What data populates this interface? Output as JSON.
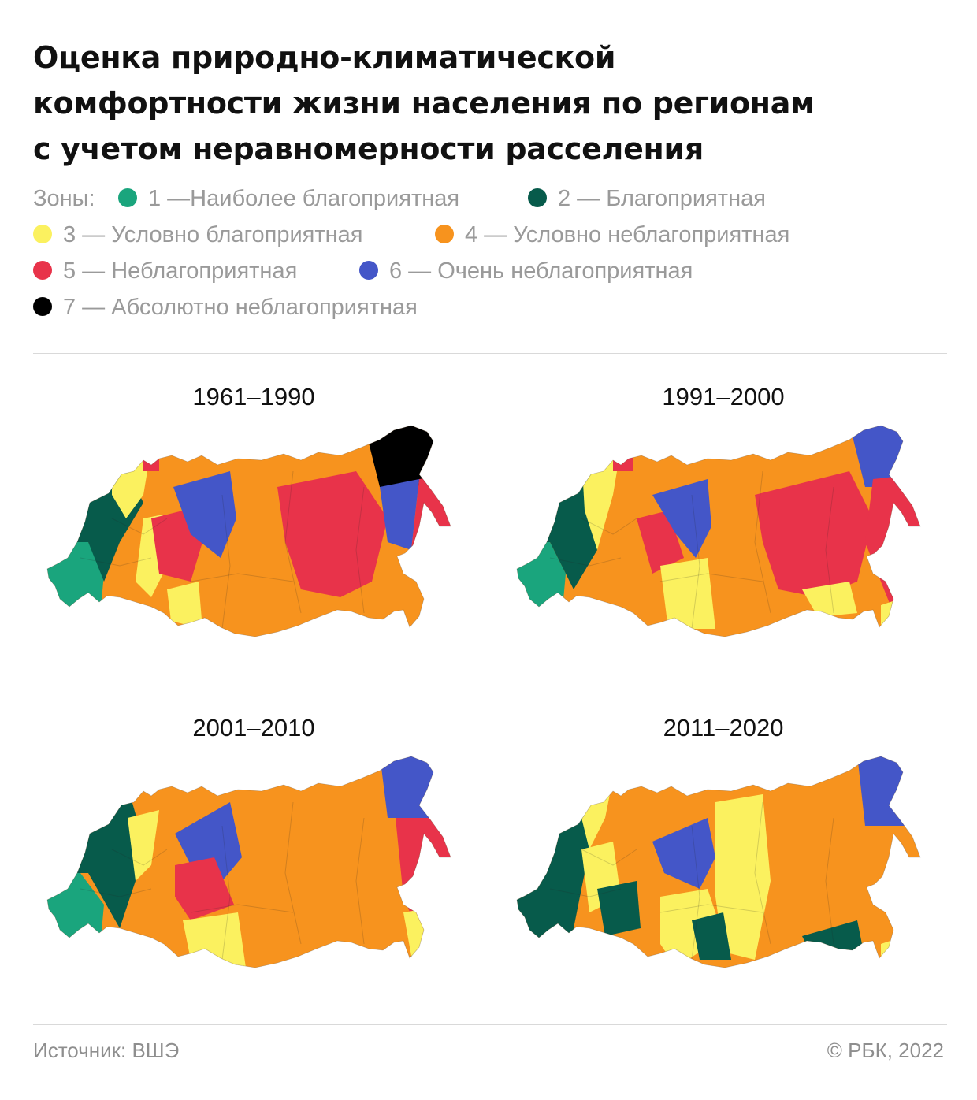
{
  "title": {
    "line1": "Оценка природно-климатической",
    "line2": "комфортности жизни населения по регионам",
    "line3": "с учетом неравномерности расселения"
  },
  "legend": {
    "label": "Зоны:",
    "zones": [
      {
        "text": "1 —Наиболее благоприятная",
        "color": "#1aa57d"
      },
      {
        "text": "2 — Благоприятная",
        "color": "#075b4b"
      },
      {
        "text": "3 — Условно благоприятная",
        "color": "#fbf15f"
      },
      {
        "text": "4 — Условно неблагоприятная",
        "color": "#f7931e"
      },
      {
        "text": "5 — Неблагоприятная",
        "color": "#e8334a"
      },
      {
        "text": "6 — Очень неблагоприятная",
        "color": "#4456c8"
      },
      {
        "text": "7 — Абсолютно неблагоприятная",
        "color": "#000000"
      }
    ]
  },
  "maps": [
    {
      "period": "1961–1990",
      "icon": "russia-regions-map"
    },
    {
      "period": "1991–2000",
      "icon": "russia-regions-map"
    },
    {
      "period": "2001–2010",
      "icon": "russia-regions-map"
    },
    {
      "period": "2011–2020",
      "icon": "russia-regions-map"
    }
  ],
  "footer": {
    "source": "Источник: ВШЭ",
    "copyright": "© РБК, 2022"
  }
}
